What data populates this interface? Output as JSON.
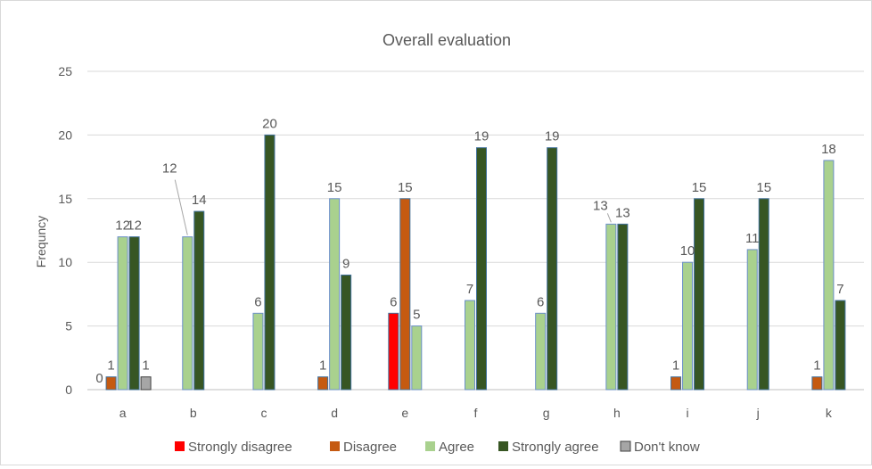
{
  "chart_data": {
    "type": "bar",
    "title": "Overall  evaluation",
    "xlabel": "",
    "ylabel": "Frequncy",
    "ylim": [
      0,
      25
    ],
    "yticks": [
      0,
      5,
      10,
      15,
      20,
      25
    ],
    "grid": true,
    "legend_position": "bottom",
    "categories": [
      "a",
      "b",
      "c",
      "d",
      "e",
      "f",
      "g",
      "h",
      "i",
      "j",
      "k"
    ],
    "series": [
      {
        "name": "Strongly disagree",
        "color": "#ff0000",
        "values": [
          0,
          null,
          null,
          null,
          6,
          null,
          null,
          null,
          null,
          null,
          null
        ]
      },
      {
        "name": "Disagree",
        "color": "#c55a11",
        "values": [
          1,
          null,
          null,
          1,
          15,
          null,
          null,
          null,
          1,
          null,
          1
        ]
      },
      {
        "name": "Agree",
        "color": "#a9d18e",
        "values": [
          12,
          12,
          6,
          15,
          5,
          7,
          6,
          13,
          10,
          11,
          18
        ]
      },
      {
        "name": "Strongly agree",
        "color": "#375623",
        "values": [
          12,
          14,
          20,
          9,
          null,
          19,
          19,
          13,
          15,
          15,
          7
        ]
      },
      {
        "name": "Don't know",
        "color": "#a6a6a6",
        "values": [
          1,
          null,
          null,
          null,
          null,
          null,
          null,
          null,
          null,
          null,
          null
        ]
      }
    ]
  }
}
